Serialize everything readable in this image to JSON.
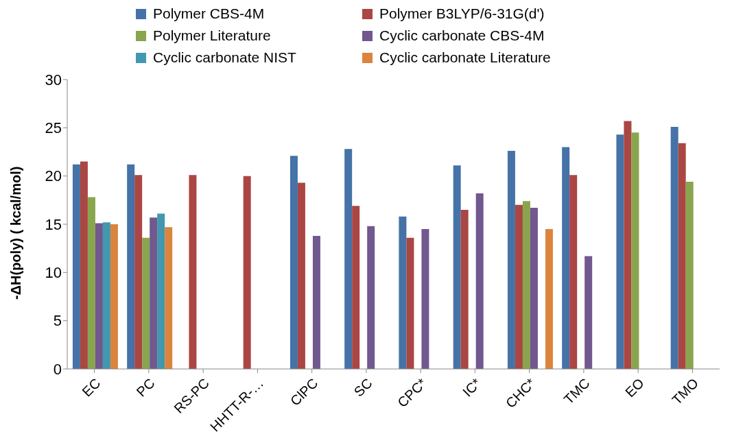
{
  "chart_data": {
    "type": "bar",
    "ylabel": "-ΔH(poly) ( kcal/mol)",
    "categories": [
      "EC",
      "PC",
      "RS-PC",
      "HHTT-R-…",
      "ClPC",
      "SC",
      "CPC*",
      "IC*",
      "CHC*",
      "TMC",
      "EO",
      "TMO"
    ],
    "series": [
      {
        "name": "Polymer CBS-4M",
        "color": "#4572a7",
        "values": [
          21.2,
          21.2,
          null,
          null,
          22.1,
          22.8,
          15.8,
          21.1,
          22.6,
          23.0,
          24.3,
          25.1
        ]
      },
      {
        "name": "Polymer B3LYP/6-31G(d')",
        "color": "#aa4643",
        "values": [
          21.5,
          20.1,
          20.1,
          20.0,
          19.3,
          16.9,
          13.6,
          16.5,
          17.0,
          20.1,
          25.7,
          23.4
        ]
      },
      {
        "name": "Polymer Literature",
        "color": "#89a54e",
        "values": [
          17.8,
          13.6,
          null,
          null,
          null,
          null,
          null,
          null,
          17.4,
          null,
          24.5,
          19.4
        ]
      },
      {
        "name": "Cyclic carbonate CBS-4M",
        "color": "#71588f",
        "values": [
          15.1,
          15.7,
          null,
          null,
          13.8,
          14.8,
          14.5,
          18.2,
          16.7,
          11.7,
          null,
          null
        ]
      },
      {
        "name": "Cyclic carbonate NIST",
        "color": "#4198af",
        "values": [
          15.2,
          16.1,
          null,
          null,
          null,
          null,
          null,
          null,
          null,
          null,
          null,
          null
        ]
      },
      {
        "name": "Cyclic carbonate Literature",
        "color": "#db843d",
        "values": [
          15.0,
          14.7,
          null,
          null,
          null,
          null,
          null,
          null,
          14.5,
          null,
          null,
          null
        ]
      }
    ],
    "ylim": [
      0,
      30
    ],
    "yticks": [
      0,
      5,
      10,
      15,
      20,
      25,
      30
    ],
    "grid": false,
    "legend": "top"
  }
}
